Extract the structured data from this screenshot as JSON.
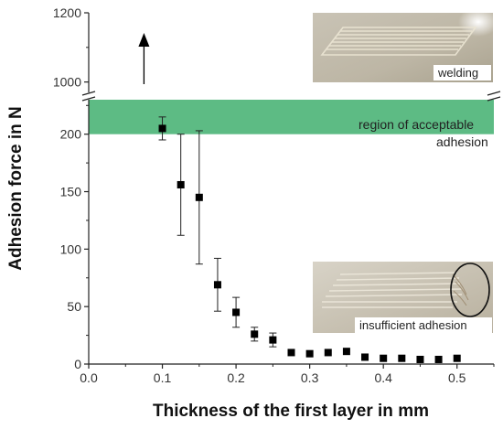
{
  "chart_data": {
    "type": "scatter",
    "xlabel": "Thickness of the first layer in mm",
    "ylabel": "Adhesion force in N",
    "xlim": [
      0.0,
      0.55
    ],
    "x_ticks": [
      "0.0",
      "0.1",
      "0.2",
      "0.3",
      "0.4",
      "0.5"
    ],
    "y_ticks_lower": [
      "0",
      "50",
      "100",
      "150",
      "200"
    ],
    "y_ticks_upper": [
      "1000",
      "1200"
    ],
    "ylim_lower": [
      0,
      230
    ],
    "ylim_upper": [
      970,
      1200
    ],
    "axis_break": true,
    "points": [
      {
        "x": 0.1,
        "y": 205,
        "err": 10
      },
      {
        "x": 0.125,
        "y": 156,
        "err": 44
      },
      {
        "x": 0.15,
        "y": 145,
        "err": 58
      },
      {
        "x": 0.175,
        "y": 69,
        "err": 23
      },
      {
        "x": 0.2,
        "y": 45,
        "err": 13
      },
      {
        "x": 0.225,
        "y": 26,
        "err": 6
      },
      {
        "x": 0.25,
        "y": 21,
        "err": 6
      },
      {
        "x": 0.275,
        "y": 10,
        "err": 0
      },
      {
        "x": 0.3,
        "y": 9,
        "err": 0
      },
      {
        "x": 0.325,
        "y": 10,
        "err": 0
      },
      {
        "x": 0.35,
        "y": 11,
        "err": 0
      },
      {
        "x": 0.375,
        "y": 6,
        "err": 0
      },
      {
        "x": 0.4,
        "y": 5,
        "err": 0
      },
      {
        "x": 0.425,
        "y": 5,
        "err": 0
      },
      {
        "x": 0.45,
        "y": 4,
        "err": 0
      },
      {
        "x": 0.475,
        "y": 4,
        "err": 0
      },
      {
        "x": 0.5,
        "y": 5,
        "err": 0
      }
    ],
    "arrow_x": 0.075,
    "region": {
      "label_line1": "region of acceptable",
      "label_line2": "adhesion",
      "y_from": 200,
      "color": "#5dbb84"
    },
    "insets": {
      "top": {
        "caption": "welding"
      },
      "bottom": {
        "caption": "insufficient adhesion"
      }
    }
  }
}
